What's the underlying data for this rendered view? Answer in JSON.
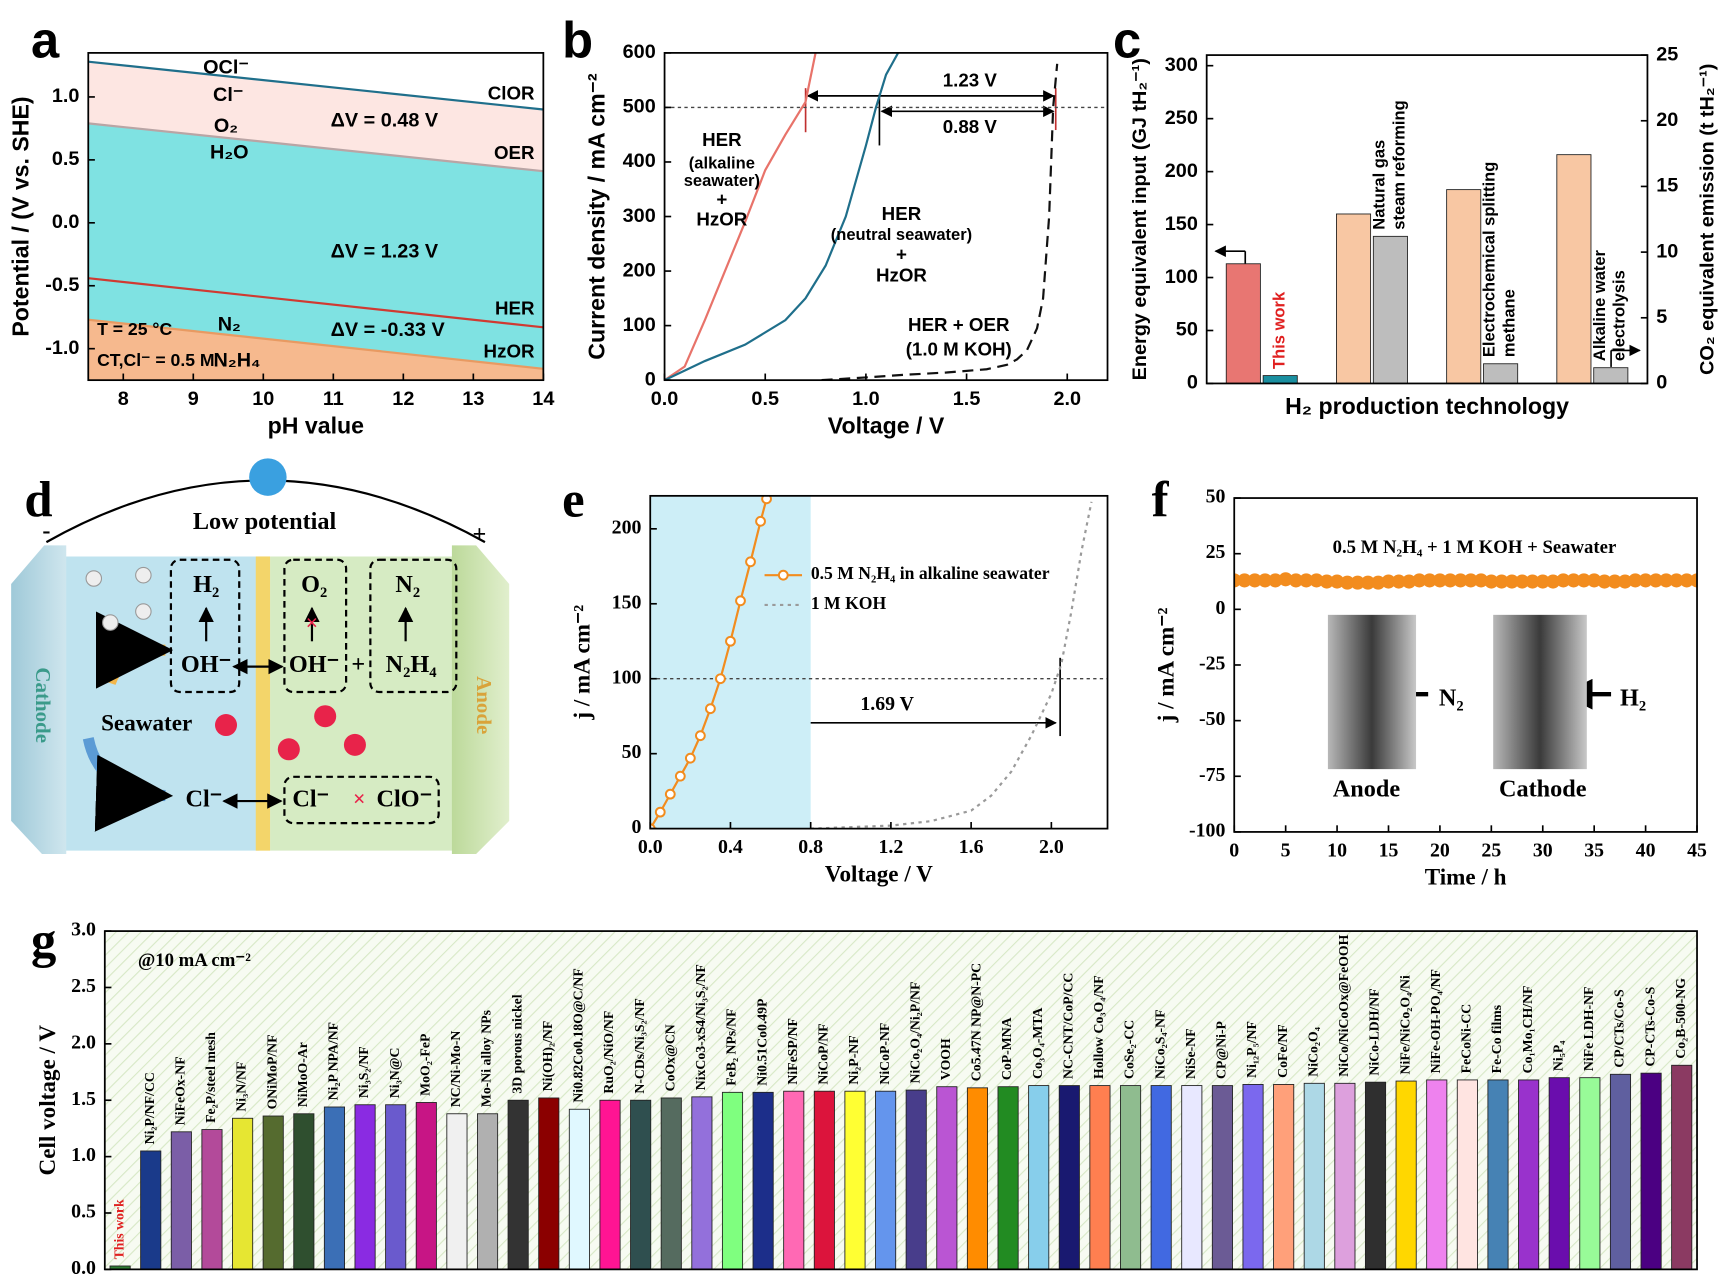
{
  "chart_data": [
    {
      "panel": "a",
      "type": "line",
      "xlabel": "pH value",
      "ylabel": "Potential / (V vs. SHE)",
      "xlim": [
        7.5,
        14
      ],
      "ylim": [
        -1.25,
        1.35
      ],
      "xticks": [
        8,
        9,
        10,
        11,
        12,
        13,
        14
      ],
      "yticks": [
        {
          "value": -1,
          "label": "-1.0"
        },
        -0.5,
        {
          "value": 0,
          "label": "0.0"
        },
        0.5,
        {
          "value": 1,
          "label": "1.0"
        }
      ],
      "x": [
        7.5,
        14
      ],
      "line_labels": true,
      "series": [
        {
          "name": "ClOR",
          "color": "#1f6f8b",
          "fill": "#fde6e2",
          "values": [
            1.28,
            0.9
          ]
        },
        {
          "name": "OER",
          "color": "#b9a5a5",
          "fill": "#7fe2e2",
          "values": [
            0.79,
            0.41
          ]
        },
        {
          "name": "HER",
          "color": "#d03a32",
          "fill": "#7fe2e2",
          "values": [
            -0.44,
            -0.83
          ]
        },
        {
          "name": "HzOR",
          "color": "#e89a62",
          "fill": "#f6b98e",
          "values": [
            -0.77,
            -1.16
          ]
        }
      ],
      "annotations": [
        "OCl⁻",
        "Cl⁻",
        "O₂",
        "H₂O",
        "N₂",
        "N₂H₄",
        "ΔV = 0.48 V",
        "ΔV = 1.23 V",
        "ΔV = -0.33 V",
        "T = 25 °C",
        "CT,Cl⁻ = 0.5 M"
      ]
    },
    {
      "panel": "b",
      "type": "line",
      "xlabel": "Voltage / V",
      "ylabel": "Current density / mA cm⁻²",
      "xlim": [
        0,
        2.2
      ],
      "ylim": [
        0,
        600
      ],
      "xticks": [
        {
          "value": 0,
          "label": "0.0"
        },
        0.5,
        {
          "value": 1,
          "label": "1.0"
        },
        1.5,
        {
          "value": 2,
          "label": "2.0"
        }
      ],
      "yticks": [
        0,
        100,
        200,
        300,
        400,
        500,
        600
      ],
      "hline": 500,
      "series": [
        {
          "color": "#e8736a",
          "x": [
            0,
            0.1,
            0.2,
            0.3,
            0.4,
            0.5,
            0.6,
            0.7,
            0.75
          ],
          "values": [
            0,
            25,
            110,
            200,
            290,
            385,
            450,
            510,
            600
          ]
        },
        {
          "color": "#1f6f8b",
          "x": [
            0,
            0.2,
            0.4,
            0.6,
            0.7,
            0.8,
            0.9,
            1.0,
            1.05,
            1.1,
            1.16
          ],
          "values": [
            0,
            35,
            65,
            110,
            150,
            210,
            300,
            430,
            500,
            560,
            600
          ]
        },
        {
          "color": "#111111",
          "style": "dashed",
          "x": [
            0.78,
            1.0,
            1.2,
            1.4,
            1.6,
            1.7,
            1.75,
            1.8,
            1.85,
            1.88,
            1.91,
            1.93,
            1.95
          ],
          "values": [
            0,
            5,
            10,
            14,
            20,
            28,
            38,
            55,
            95,
            150,
            300,
            500,
            580
          ]
        }
      ],
      "annotations": [
        "1.23 V",
        "0.88 V",
        "HER",
        "(alkaline",
        "seawater)",
        "+",
        "HzOR",
        "HER",
        "(neutral seawater)",
        "+",
        "HzOR",
        "HER + OER",
        "(1.0 M KOH)"
      ]
    },
    {
      "panel": "c",
      "type": "bar",
      "xlabel": "H₂ production technology",
      "ylabel": "Energy equivalent input (GJ tH₂⁻¹)",
      "y2label": "CO₂ equivalent emission (t tH₂⁻¹)",
      "ylim": [
        0,
        310
      ],
      "yticks": [
        0,
        50,
        100,
        150,
        200,
        250,
        300
      ],
      "y2lim": [
        0,
        25
      ],
      "y2ticks": [
        0,
        5,
        10,
        15,
        20,
        25
      ],
      "categories": [
        "This work",
        "Natural gas steam reforming",
        "Electrochemical splitting methane",
        "Alkaline water electrolysis"
      ],
      "series": [
        {
          "values": [
            113,
            160,
            183,
            216
          ],
          "colors": [
            "#e87672",
            "#f8c7a3",
            "#f8c7a3",
            "#f8c7a3"
          ]
        },
        {
          "axis": "y2",
          "values": [
            0.6,
            11.2,
            1.5,
            1.2
          ],
          "colors": [
            "#1a8fa0",
            "#bdbdbd",
            "#bdbdbd",
            "#bdbdbd"
          ]
        }
      ]
    },
    {
      "panel": "e",
      "type": "line",
      "xlabel": "Voltage / V",
      "ylabel": "j / mA cm⁻²",
      "xlim": [
        0,
        2.28
      ],
      "ylim": [
        0,
        222
      ],
      "xticks": [
        {
          "value": 0,
          "label": "0.0"
        },
        0.4,
        0.8,
        1.2,
        1.6,
        {
          "value": 2,
          "label": "2.0"
        }
      ],
      "yticks": [
        0,
        50,
        100,
        150,
        200
      ],
      "hline": 100,
      "shade": [
        0,
        0.8
      ],
      "shade_color": "#cdeef7",
      "legend": "upper center",
      "series": [
        {
          "name": "0.5 M N₂H₄ in alkaline seawater",
          "color": "#f28c1e",
          "marker": "open",
          "x": [
            0,
            0.05,
            0.1,
            0.15,
            0.2,
            0.25,
            0.3,
            0.35,
            0.4,
            0.45,
            0.5,
            0.55,
            0.58
          ],
          "values": [
            0,
            11,
            23,
            35,
            47,
            62,
            80,
            100,
            125,
            152,
            178,
            205,
            220
          ]
        },
        {
          "name": "1 M KOH",
          "color": "#9a9a9a",
          "style": "dotted",
          "x": [
            0.8,
            1.2,
            1.4,
            1.6,
            1.7,
            1.8,
            1.9,
            2.0,
            2.05,
            2.1,
            2.15,
            2.2
          ],
          "values": [
            0,
            2,
            5,
            12,
            22,
            38,
            62,
            90,
            110,
            145,
            185,
            218
          ]
        }
      ],
      "annotations": [
        "1.69 V"
      ]
    },
    {
      "panel": "f",
      "type": "line",
      "xlabel": "Time / h",
      "ylabel": "j / mA cm⁻²",
      "xlim": [
        0,
        45
      ],
      "ylim": [
        -100,
        50
      ],
      "xticks": [
        0,
        5,
        10,
        15,
        20,
        25,
        30,
        35,
        40,
        45
      ],
      "yticks": [
        -100,
        -75,
        -50,
        -25,
        0,
        25,
        50
      ],
      "series": [
        {
          "color": "#f28c1e",
          "marker": "filled",
          "x": [
            0,
            1,
            2,
            3,
            4,
            5,
            6,
            7,
            8,
            9,
            10,
            11,
            12,
            13,
            14,
            15,
            16,
            17,
            18,
            19,
            20,
            21,
            22,
            23,
            24,
            25,
            26,
            27,
            28,
            29,
            30,
            31,
            32,
            33,
            34,
            35,
            36,
            37,
            38,
            39,
            40,
            41,
            42,
            43,
            44,
            45
          ],
          "values": [
            13,
            13,
            13,
            13,
            13,
            13.5,
            13,
            13,
            13,
            12.5,
            12.5,
            12,
            12,
            12,
            12,
            12.5,
            12.5,
            12.5,
            13,
            13,
            13,
            13,
            13,
            13,
            13,
            12.5,
            12.5,
            12.5,
            12.5,
            12.5,
            12.5,
            12.5,
            13,
            13,
            13,
            13,
            12.5,
            12.5,
            12.5,
            13,
            13,
            13,
            13,
            13,
            13,
            13
          ]
        }
      ],
      "annotations": [
        "0.5 M N₂H₄ + 1 M KOH + Seawater",
        "N₂",
        "H₂",
        "Anode",
        "Cathode"
      ]
    },
    {
      "panel": "g",
      "type": "bar",
      "ylabel": "Cell voltage / V",
      "ylim": [
        0,
        3
      ],
      "yticks": [
        {
          "value": 0,
          "label": "0.0"
        },
        0.5,
        {
          "value": 1,
          "label": "1.0"
        },
        1.5,
        {
          "value": 2,
          "label": "2.0"
        },
        2.5,
        {
          "value": 3,
          "label": "3.0"
        }
      ],
      "categories": [
        "This work",
        "Ni₂P/NF/CC",
        "NiFeOx-NF",
        "Fe₂P/steel mesh",
        "Ni₃N/NF",
        "ONiMoP/NF",
        "NiMoO-Ar",
        "Ni₂P NPA/NF",
        "Ni₃S₂/NF",
        "Ni₃N@C",
        "MoO₂-FeP",
        "NC/Ni-Mo-N",
        "Mo-Ni alloy NPs",
        "3D porous nickel",
        "Ni(OH)₂/NF",
        "Ni0.82Co0.18O@C/NF",
        "RuO₂/NiO/NF",
        "N-CDs/Ni₃S₂/NF",
        "CoOx@CN",
        "NixCo3-xS4/Ni₃S₂/NF",
        "FeB₂ NPs/NF",
        "Ni0.51Co0.49P",
        "NiFeSP/NF",
        "NiCoP/NF",
        "Ni₂P-NF",
        "NiCoP-NF",
        "NiCo₂O₄/Ni₂P/NF",
        "VOOH",
        "Co5.47N NP@N-PC",
        "CoP-MNA",
        "Co₃O₄-MTA",
        "NC-CNT/CoP/CC",
        "Hollow Co₃O₄/NF",
        "CoSe₂-CC",
        "NiCo₂S₄-NF",
        "NiSe-NF",
        "CP@Ni-P",
        "Ni₁₂P₅/NF",
        "CoFe/NF",
        "NiCo₂O₄",
        "NiCo/NiCoOx@FeOOH",
        "NiCo-LDH/NF",
        "NiFe/NiCo₂O₄/Ni",
        "NiFe-OH-PO₄/NF",
        "FeCoNi-CC",
        "Fe-Co films",
        "Co₁Mo₁CH/NF",
        "Ni₅P₄",
        "NiFe LDH-NF",
        "CP/CTs/Co-S",
        "CP-CTs-Co-S",
        "Co₂B-500-NG"
      ],
      "values": [
        0.03,
        1.05,
        1.22,
        1.24,
        1.34,
        1.36,
        1.38,
        1.44,
        1.46,
        1.46,
        1.48,
        1.38,
        1.38,
        1.5,
        1.52,
        1.42,
        1.5,
        1.5,
        1.52,
        1.53,
        1.57,
        1.57,
        1.58,
        1.58,
        1.58,
        1.58,
        1.59,
        1.62,
        1.61,
        1.62,
        1.63,
        1.63,
        1.63,
        1.63,
        1.63,
        1.63,
        1.63,
        1.64,
        1.64,
        1.65,
        1.65,
        1.66,
        1.67,
        1.68,
        1.68,
        1.68,
        1.68,
        1.7,
        1.7,
        1.73,
        1.74,
        1.81
      ],
      "colors": [
        "#2e7d32",
        "#1a3a8a",
        "#7b5ea7",
        "#b34a9a",
        "#e6e632",
        "#556b2f",
        "#2f4f2f",
        "#3b6fb6",
        "#8a2be2",
        "#6a5acd",
        "#c71585",
        "#f0f0f0",
        "#b0b0b0",
        "#333333",
        "#8b0000",
        "#e0f8ff",
        "#ff1493",
        "#2f4f4f",
        "#556b5f",
        "#9370db",
        "#7fff7f",
        "#1c2e8a",
        "#ff69b4",
        "#dc143c",
        "#ffff33",
        "#6495ed",
        "#483d8b",
        "#ba55d3",
        "#ff8c00",
        "#228b22",
        "#87ceeb",
        "#191970",
        "#ff7f50",
        "#8fbc8f",
        "#4169e1",
        "#e8e8ff",
        "#6b5b95",
        "#7b68ee",
        "#ffa07a",
        "#add8e6",
        "#dda0dd",
        "#2f2f2f",
        "#ffd700",
        "#ee82ee",
        "#ffe4e1",
        "#4682b4",
        "#9932cc",
        "#6a0dad",
        "#98fb98",
        "#5f5f9f",
        "#4b0082",
        "#8b3a62"
      ],
      "annotations": [
        "@10 mA cm⁻²"
      ]
    }
  ],
  "diagram": {
    "panel": "d",
    "labels": [
      "Low potential",
      "-",
      "+",
      "H₂",
      "OH⁻",
      "O₂",
      "OH⁻",
      "+",
      "N₂",
      "N₂H₄",
      "Seawater",
      "Cl⁻",
      "Cl⁻",
      "ClO⁻",
      "Cathode",
      "Anode"
    ]
  }
}
